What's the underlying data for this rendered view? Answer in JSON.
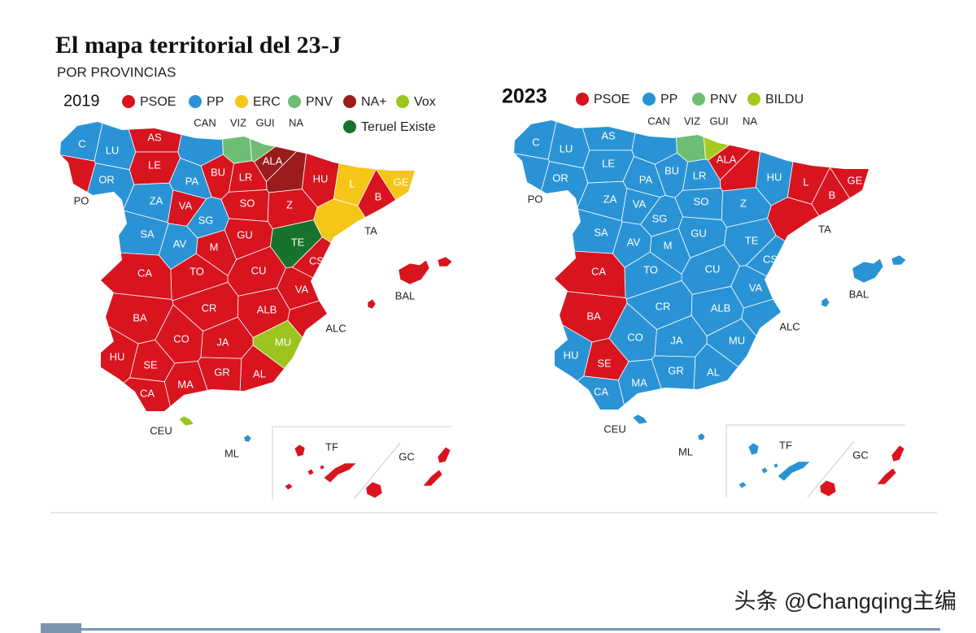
{
  "title": "El mapa territorial del 23-J",
  "subtitle": "POR PROVINCIAS",
  "maps": [
    {
      "year": "2019",
      "legend": [
        {
          "party": "PSOE",
          "color": "#d8141f"
        },
        {
          "party": "PP",
          "color": "#2a93d5"
        },
        {
          "party": "ERC",
          "color": "#f5c518"
        },
        {
          "party": "PNV",
          "color": "#6fbd74"
        },
        {
          "party": "NA+",
          "color": "#9a1c1c"
        },
        {
          "party": "Vox",
          "color": "#9cc41f"
        },
        {
          "party": "Teruel Existe",
          "color": "#17722c"
        }
      ],
      "provinces": [
        {
          "label": "C",
          "party": "PP"
        },
        {
          "label": "LU",
          "party": "PP"
        },
        {
          "label": "PO",
          "party": "PSOE"
        },
        {
          "label": "OR",
          "party": "PP"
        },
        {
          "label": "AS",
          "party": "PSOE"
        },
        {
          "label": "LE",
          "party": "PSOE"
        },
        {
          "label": "ZA",
          "party": "PP"
        },
        {
          "label": "PA",
          "party": "PP"
        },
        {
          "label": "BU",
          "party": "PSOE"
        },
        {
          "label": "CAN",
          "party": "PP"
        },
        {
          "label": "VIZ",
          "party": "PNV"
        },
        {
          "label": "GUI",
          "party": "PNV"
        },
        {
          "label": "ALA",
          "party": "NA+"
        },
        {
          "label": "NA",
          "party": "NA+"
        },
        {
          "label": "LR",
          "party": "PSOE"
        },
        {
          "label": "SO",
          "party": "PSOE"
        },
        {
          "label": "HU",
          "party": "PSOE"
        },
        {
          "label": "L",
          "party": "ERC"
        },
        {
          "label": "GE",
          "party": "ERC"
        },
        {
          "label": "B",
          "party": "PSOE"
        },
        {
          "label": "TA",
          "party": "ERC"
        },
        {
          "label": "Z",
          "party": "PSOE"
        },
        {
          "label": "TE",
          "party": "Teruel Existe"
        },
        {
          "label": "CS",
          "party": "PSOE"
        },
        {
          "label": "VA",
          "party": "PSOE"
        },
        {
          "label": "ALC",
          "party": "PSOE"
        },
        {
          "label": "MU",
          "party": "Vox"
        },
        {
          "label": "AL",
          "party": "PSOE"
        },
        {
          "label": "GR",
          "party": "PSOE"
        },
        {
          "label": "MA",
          "party": "PSOE"
        },
        {
          "label": "CA",
          "party": "PSOE"
        },
        {
          "label": "SE",
          "party": "PSOE"
        },
        {
          "label": "HU",
          "party": "PSOE"
        },
        {
          "label": "CO",
          "party": "PSOE"
        },
        {
          "label": "JA",
          "party": "PSOE"
        },
        {
          "label": "BA",
          "party": "PSOE"
        },
        {
          "label": "CR",
          "party": "PSOE"
        },
        {
          "label": "ALB",
          "party": "PSOE"
        },
        {
          "label": "CU",
          "party": "PSOE"
        },
        {
          "label": "TO",
          "party": "PSOE"
        },
        {
          "label": "CA",
          "party": "PSOE"
        },
        {
          "label": "M",
          "party": "PSOE"
        },
        {
          "label": "AV",
          "party": "PP"
        },
        {
          "label": "SA",
          "party": "PP"
        },
        {
          "label": "SG",
          "party": "PP"
        },
        {
          "label": "VA",
          "party": "PSOE"
        },
        {
          "label": "GU",
          "party": "PSOE"
        },
        {
          "label": "BAL",
          "party": "PSOE"
        },
        {
          "label": "CEU",
          "party": "Vox"
        },
        {
          "label": "ML",
          "party": "PP"
        },
        {
          "label": "TF",
          "party": "PSOE"
        },
        {
          "label": "GC",
          "party": "PSOE"
        }
      ]
    },
    {
      "year": "2023",
      "legend": [
        {
          "party": "PSOE",
          "color": "#d8141f"
        },
        {
          "party": "PP",
          "color": "#2a93d5"
        },
        {
          "party": "PNV",
          "color": "#6fbd74"
        },
        {
          "party": "BILDU",
          "color": "#a6c91f"
        }
      ],
      "provinces": [
        {
          "label": "C",
          "party": "PP"
        },
        {
          "label": "LU",
          "party": "PP"
        },
        {
          "label": "PO",
          "party": "PP"
        },
        {
          "label": "OR",
          "party": "PP"
        },
        {
          "label": "AS",
          "party": "PP"
        },
        {
          "label": "LE",
          "party": "PP"
        },
        {
          "label": "ZA",
          "party": "PP"
        },
        {
          "label": "PA",
          "party": "PP"
        },
        {
          "label": "BU",
          "party": "PP"
        },
        {
          "label": "CAN",
          "party": "PP"
        },
        {
          "label": "VIZ",
          "party": "PNV"
        },
        {
          "label": "GUI",
          "party": "BILDU"
        },
        {
          "label": "ALA",
          "party": "PSOE"
        },
        {
          "label": "NA",
          "party": "PSOE"
        },
        {
          "label": "LR",
          "party": "PP"
        },
        {
          "label": "SO",
          "party": "PP"
        },
        {
          "label": "HU",
          "party": "PP"
        },
        {
          "label": "L",
          "party": "PSOE"
        },
        {
          "label": "GE",
          "party": "PSOE"
        },
        {
          "label": "B",
          "party": "PSOE"
        },
        {
          "label": "TA",
          "party": "PSOE"
        },
        {
          "label": "Z",
          "party": "PP"
        },
        {
          "label": "TE",
          "party": "PP"
        },
        {
          "label": "CS",
          "party": "PP"
        },
        {
          "label": "VA",
          "party": "PP"
        },
        {
          "label": "ALC",
          "party": "PP"
        },
        {
          "label": "MU",
          "party": "PP"
        },
        {
          "label": "AL",
          "party": "PP"
        },
        {
          "label": "GR",
          "party": "PP"
        },
        {
          "label": "MA",
          "party": "PP"
        },
        {
          "label": "CA",
          "party": "PP"
        },
        {
          "label": "SE",
          "party": "PSOE"
        },
        {
          "label": "HU",
          "party": "PP"
        },
        {
          "label": "CO",
          "party": "PP"
        },
        {
          "label": "JA",
          "party": "PP"
        },
        {
          "label": "BA",
          "party": "PSOE"
        },
        {
          "label": "CR",
          "party": "PP"
        },
        {
          "label": "ALB",
          "party": "PP"
        },
        {
          "label": "CU",
          "party": "PP"
        },
        {
          "label": "TO",
          "party": "PP"
        },
        {
          "label": "CA",
          "party": "PSOE"
        },
        {
          "label": "M",
          "party": "PP"
        },
        {
          "label": "AV",
          "party": "PP"
        },
        {
          "label": "SA",
          "party": "PP"
        },
        {
          "label": "SG",
          "party": "PP"
        },
        {
          "label": "VA",
          "party": "PP"
        },
        {
          "label": "GU",
          "party": "PP"
        },
        {
          "label": "BAL",
          "party": "PP"
        },
        {
          "label": "CEU",
          "party": "PP"
        },
        {
          "label": "ML",
          "party": "PP"
        },
        {
          "label": "TF",
          "party": "PP"
        },
        {
          "label": "GC",
          "party": "PSOE"
        }
      ]
    }
  ],
  "watermark": "头条 @Changqing主编"
}
